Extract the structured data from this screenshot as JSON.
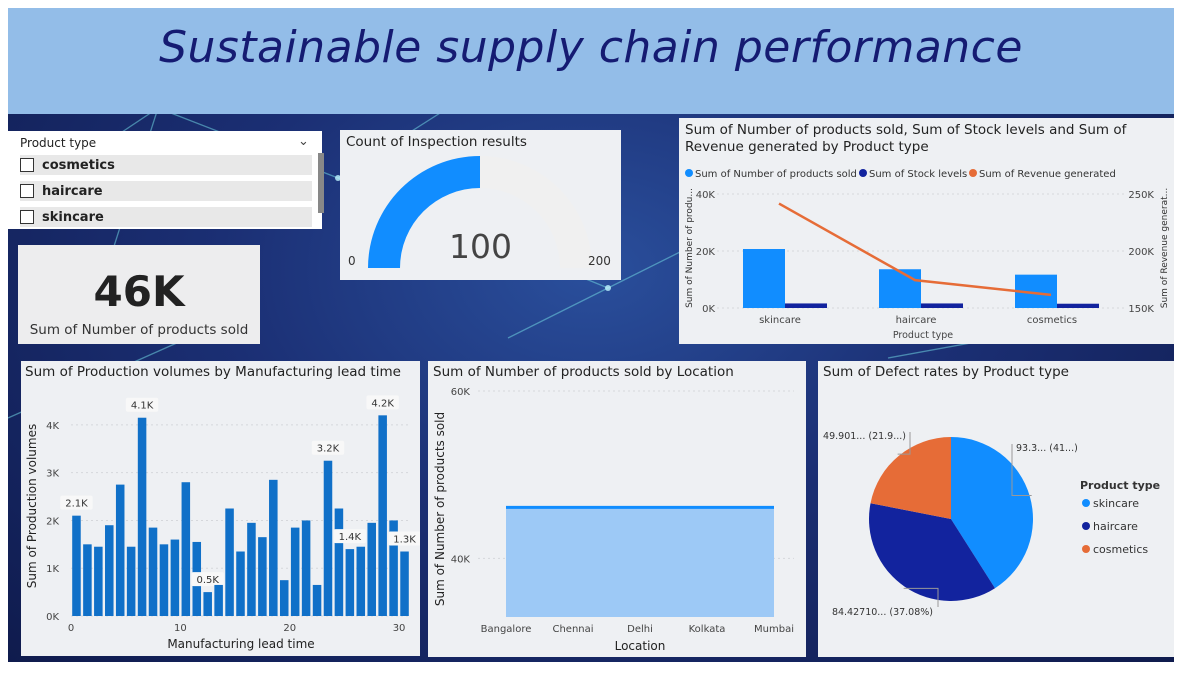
{
  "dashboard": {
    "title": "Sustainable supply chain performance"
  },
  "colors": {
    "primary": "#118dff",
    "dark": "#12239e",
    "orange": "#e66c37",
    "header": "#93bde8",
    "title": "#151b72"
  },
  "slicer": {
    "header": "Product type",
    "chevron_icon": "chevron-down-icon",
    "items": [
      {
        "label": "cosmetics"
      },
      {
        "label": "haircare"
      },
      {
        "label": "skincare"
      }
    ]
  },
  "card": {
    "value": "46K",
    "label": "Sum of Number of products sold"
  },
  "gauge": {
    "title": "Count of Inspection results",
    "value_label": "100",
    "min_label": "0",
    "max_label": "200"
  },
  "combo": {
    "title": "Sum of Number of products sold, Sum of Stock levels and Sum of Revenue generated by Product type",
    "legend": [
      "Sum of Number of products sold",
      "Sum of Stock levels",
      "Sum of Revenue generated"
    ],
    "y_left_label": "Sum of Number of produ...",
    "y_right_label": "Sum of Revenue generat...",
    "x_label": "Product type",
    "y_left_ticks": [
      "0K",
      "20K",
      "40K"
    ],
    "y_right_ticks": [
      "150K",
      "200K",
      "250K"
    ]
  },
  "bar": {
    "title": "Sum of Production volumes by Manufacturing lead time",
    "x_label": "Manufacturing lead time",
    "y_label": "Sum of Production volumes",
    "y_ticks": [
      "0K",
      "1K",
      "2K",
      "3K",
      "4K"
    ],
    "x_ticks": [
      "0",
      "10",
      "20",
      "30"
    ]
  },
  "area": {
    "title": "Sum of Number of products sold by Location",
    "x_label": "Location",
    "y_label": "Sum of Number of products sold",
    "y_ticks": [
      "40K",
      "60K"
    ]
  },
  "pie": {
    "title": "Sum of Defect rates by Product type",
    "legend_title": "Product type",
    "legend": [
      "skincare",
      "haircare",
      "cosmetics"
    ]
  },
  "chart_data": [
    {
      "type": "bar",
      "title": "Sum of Number of products sold, Sum of Stock levels and Sum of Revenue generated by Product type",
      "categories": [
        "skincare",
        "haircare",
        "cosmetics"
      ],
      "series": [
        {
          "name": "Sum of Number of products sold",
          "values": [
            20700,
            13600,
            11700
          ],
          "axis": "left"
        },
        {
          "name": "Sum of Stock levels",
          "values": [
            1600,
            1600,
            1500
          ],
          "axis": "left"
        },
        {
          "name": "Sum of Revenue generated",
          "values": [
            241628,
            174455,
            161521
          ],
          "axis": "right",
          "type": "line"
        }
      ],
      "xlabel": "Product type",
      "ylim": [
        0,
        40000
      ],
      "ylim_right": [
        150000,
        250000
      ],
      "legend_position": "top"
    },
    {
      "type": "bar",
      "title": "Sum of Production volumes by Manufacturing lead time",
      "x": [
        1,
        2,
        3,
        4,
        5,
        6,
        7,
        8,
        9,
        10,
        11,
        12,
        13,
        14,
        15,
        16,
        17,
        18,
        19,
        20,
        21,
        22,
        23,
        24,
        25,
        26,
        27,
        28,
        29,
        30,
        31
      ],
      "values": [
        2100,
        1500,
        1450,
        1900,
        2750,
        1450,
        4150,
        1850,
        1500,
        1600,
        2800,
        1550,
        500,
        650,
        2250,
        1350,
        1950,
        1650,
        2850,
        750,
        1850,
        2000,
        650,
        3250,
        2250,
        1400,
        1450,
        1950,
        4200,
        2000,
        1350
      ],
      "data_labels": {
        "1": "2.1K",
        "7": "4.1K",
        "13": "0.5K",
        "24": "3.2K",
        "26": "1.4K",
        "29": "4.2K",
        "31": "1.3K"
      },
      "xlabel": "Manufacturing lead time",
      "ylabel": "Sum of Production volumes",
      "ylim": [
        0,
        4500
      ],
      "xlim": [
        0,
        30
      ]
    },
    {
      "type": "area",
      "title": "Sum of Number of products sold by Location",
      "categories": [
        "Bangalore",
        "Chennai",
        "Delhi",
        "Kolkata",
        "Mumbai"
      ],
      "values": [
        46100,
        46100,
        46100,
        46100,
        46100
      ],
      "xlabel": "Location",
      "ylabel": "Sum of Number of products sold",
      "ylim": [
        33000,
        60000
      ]
    },
    {
      "type": "pie",
      "title": "Sum of Defect rates by Product type",
      "labels": [
        "skincare",
        "haircare",
        "cosmetics"
      ],
      "values": [
        93.3,
        84.4271,
        49.901
      ],
      "data_labels": [
        "93.3... (41...)",
        "84.42710... (37.08%)",
        "49.901... (21.9...)"
      ]
    }
  ]
}
